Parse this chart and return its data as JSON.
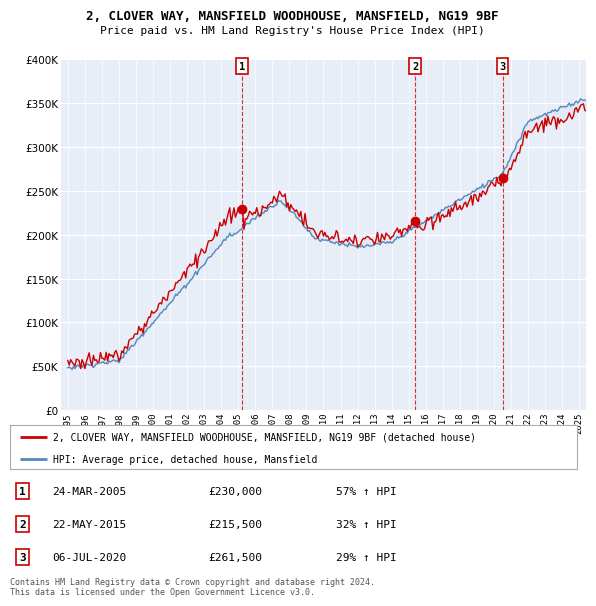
{
  "title": "2, CLOVER WAY, MANSFIELD WOODHOUSE, MANSFIELD, NG19 9BF",
  "subtitle": "Price paid vs. HM Land Registry's House Price Index (HPI)",
  "property_label": "2, CLOVER WAY, MANSFIELD WOODHOUSE, MANSFIELD, NG19 9BF (detached house)",
  "hpi_label": "HPI: Average price, detached house, Mansfield",
  "sale_annotations": [
    {
      "label": "1",
      "date": "24-MAR-2005",
      "price": "£230,000",
      "change": "57% ↑ HPI"
    },
    {
      "label": "2",
      "date": "22-MAY-2015",
      "price": "£215,500",
      "change": "32% ↑ HPI"
    },
    {
      "label": "3",
      "date": "06-JUL-2020",
      "price": "£261,500",
      "change": "29% ↑ HPI"
    }
  ],
  "copyright_text": "Contains HM Land Registry data © Crown copyright and database right 2024.\nThis data is licensed under the Open Government Licence v3.0.",
  "property_color": "#cc0000",
  "hpi_color": "#5588bb",
  "fill_color": "#dde8f5",
  "vline_color": "#cc0000",
  "ylim": [
    0,
    400000
  ],
  "yticks": [
    0,
    50000,
    100000,
    150000,
    200000,
    250000,
    300000,
    350000,
    400000
  ],
  "background_color": "#ffffff",
  "plot_bg_color": "#e8eef8",
  "grid_color": "#ffffff",
  "sale_dates_f": [
    2005.21,
    2015.38,
    2020.51
  ],
  "sale_prices": [
    230000,
    215500,
    261500
  ],
  "xmin": 1994.6,
  "xmax": 2025.4
}
